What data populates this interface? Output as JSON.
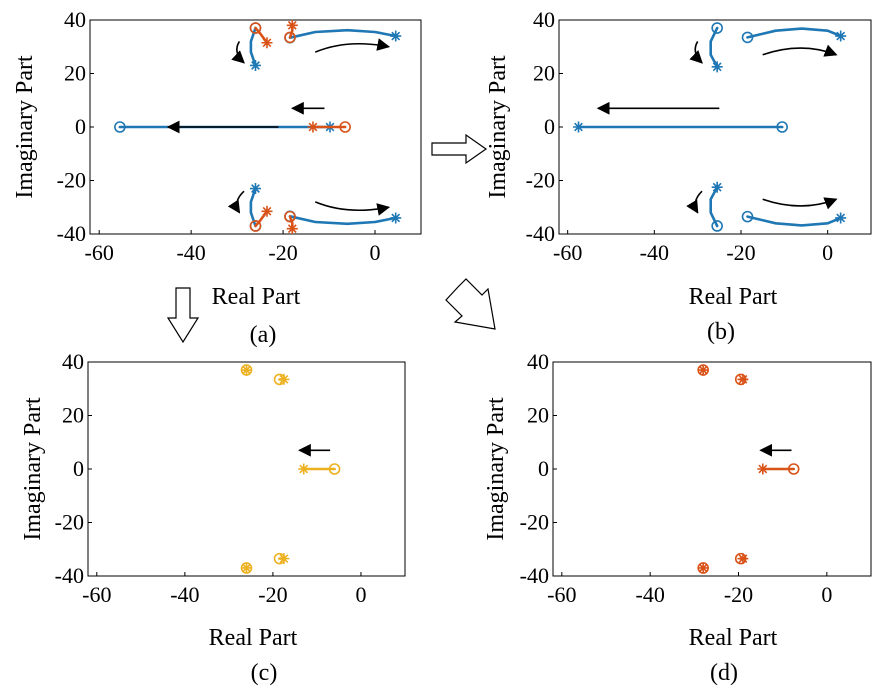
{
  "colors": {
    "blue": "#1f77b4",
    "orange": "#d95319",
    "yellow": "#edb120",
    "axis": "#000000",
    "arrow": "#000000"
  },
  "chart_data": [
    {
      "id": "a",
      "type": "line",
      "caption": "(a)",
      "xlabel": "Real Part",
      "ylabel": "Imaginary Part",
      "xlim": [
        -62,
        10
      ],
      "ylim": [
        -40,
        40
      ],
      "xticks": [
        -60,
        -40,
        -20,
        0
      ],
      "yticks": [
        -40,
        -20,
        0,
        20,
        40
      ],
      "series": [
        {
          "color": "blue",
          "points": [
            [
              -55.5,
              0
            ],
            [
              -9.8,
              0
            ]
          ],
          "start": "circle",
          "end": "star"
        },
        {
          "color": "blue",
          "points": [
            [
              -18.5,
              33.4
            ],
            [
              -13,
              35.5
            ],
            [
              -6,
              36.2
            ],
            [
              0,
              35.5
            ],
            [
              4.5,
              34
            ]
          ],
          "start": "circle",
          "end": "star"
        },
        {
          "color": "blue",
          "points": [
            [
              -18.5,
              -33.4
            ],
            [
              -13,
              -35.5
            ],
            [
              -6,
              -36.2
            ],
            [
              0,
              -35.5
            ],
            [
              4.5,
              -34
            ]
          ],
          "start": "circle",
          "end": "star"
        },
        {
          "color": "blue",
          "points": [
            [
              -26,
              37
            ],
            [
              -27,
              32
            ],
            [
              -27,
              28
            ],
            [
              -26,
              23
            ]
          ],
          "start": "circle",
          "end": "star"
        },
        {
          "color": "blue",
          "points": [
            [
              -26,
              -37
            ],
            [
              -27,
              -32
            ],
            [
              -27,
              -28
            ],
            [
              -26,
              -23
            ]
          ],
          "start": "circle",
          "end": "star"
        },
        {
          "color": "orange",
          "points": [
            [
              -6.5,
              0
            ],
            [
              -13.5,
              0
            ]
          ],
          "start": "circle",
          "end": "star"
        },
        {
          "color": "orange",
          "points": [
            [
              -26,
              37
            ],
            [
              -25,
              35
            ],
            [
              -23.5,
              31.5
            ]
          ],
          "start": "circle",
          "end": "star"
        },
        {
          "color": "orange",
          "points": [
            [
              -26,
              -37
            ],
            [
              -25,
              -35
            ],
            [
              -23.5,
              -31.5
            ]
          ],
          "start": "circle",
          "end": "star"
        },
        {
          "color": "orange",
          "points": [
            [
              -18.5,
              33.5
            ],
            [
              -18,
              36
            ],
            [
              -18,
              38
            ]
          ],
          "start": "circle",
          "end": "star"
        },
        {
          "color": "orange",
          "points": [
            [
              -18.5,
              -33.5
            ],
            [
              -18,
              -36
            ],
            [
              -18,
              -38
            ]
          ],
          "start": "circle",
          "end": "star"
        }
      ],
      "arrows": [
        {
          "points": [
            [
              -21,
              0
            ],
            [
              -45,
              0
            ]
          ]
        },
        {
          "points": [
            [
              -11,
              7
            ],
            [
              -18,
              7
            ]
          ]
        },
        {
          "points": [
            [
              -13,
              28
            ],
            [
              -6,
              33
            ],
            [
              3,
              30
            ]
          ]
        },
        {
          "points": [
            [
              -13,
              -28
            ],
            [
              -6,
              -33
            ],
            [
              3,
              -30
            ]
          ]
        },
        {
          "points": [
            [
              -29.5,
              32
            ],
            [
              -31,
              28
            ],
            [
              -28.5,
              24
            ]
          ]
        },
        {
          "points": [
            [
              -28.5,
              -24
            ],
            [
              -31,
              -28
            ],
            [
              -29.5,
              -32
            ]
          ]
        }
      ]
    },
    {
      "id": "b",
      "type": "line",
      "caption": "(b)",
      "xlabel": "Real Part",
      "ylabel": "Imaginary Part",
      "xlim": [
        -62,
        10
      ],
      "ylim": [
        -40,
        40
      ],
      "xticks": [
        -60,
        -40,
        -20,
        0
      ],
      "yticks": [
        -40,
        -20,
        0,
        20,
        40
      ],
      "series": [
        {
          "color": "blue",
          "points": [
            [
              -10.5,
              0
            ],
            [
              -57.5,
              0
            ]
          ],
          "start": "circle",
          "end": "star"
        },
        {
          "color": "blue",
          "points": [
            [
              -18.5,
              33.5
            ],
            [
              -12,
              36
            ],
            [
              -6,
              36.8
            ],
            [
              0,
              36
            ],
            [
              3,
              34
            ]
          ],
          "start": "circle",
          "end": "star"
        },
        {
          "color": "blue",
          "points": [
            [
              -18.5,
              -33.5
            ],
            [
              -12,
              -36
            ],
            [
              -6,
              -36.8
            ],
            [
              0,
              -36
            ],
            [
              3,
              -34
            ]
          ],
          "start": "circle",
          "end": "star"
        },
        {
          "color": "blue",
          "points": [
            [
              -25.5,
              37
            ],
            [
              -27,
              32
            ],
            [
              -27,
              27
            ],
            [
              -25.5,
              22.5
            ]
          ],
          "start": "circle",
          "end": "star"
        },
        {
          "color": "blue",
          "points": [
            [
              -25.5,
              -37
            ],
            [
              -27,
              -32
            ],
            [
              -27,
              -27
            ],
            [
              -25.5,
              -22.5
            ]
          ],
          "start": "circle",
          "end": "star"
        }
      ],
      "arrows": [
        {
          "points": [
            [
              -25,
              7
            ],
            [
              -53,
              7
            ]
          ]
        },
        {
          "points": [
            [
              -15,
              27
            ],
            [
              -6,
              32
            ],
            [
              2,
              27
            ]
          ]
        },
        {
          "points": [
            [
              -15,
              -27
            ],
            [
              -6,
              -32
            ],
            [
              2,
              -27
            ]
          ]
        },
        {
          "points": [
            [
              -30,
              32
            ],
            [
              -31.5,
              28
            ],
            [
              -29,
              24
            ]
          ]
        },
        {
          "points": [
            [
              -29,
              -24
            ],
            [
              -31.5,
              -28
            ],
            [
              -30,
              -32
            ]
          ]
        }
      ]
    },
    {
      "id": "c",
      "type": "line",
      "caption": "(c)",
      "xlabel": "Real Part",
      "ylabel": "Imaginary Part",
      "xlim": [
        -62,
        10
      ],
      "ylim": [
        -40,
        40
      ],
      "xticks": [
        -60,
        -40,
        -20,
        0
      ],
      "yticks": [
        -40,
        -20,
        0,
        20,
        40
      ],
      "series": [
        {
          "color": "yellow",
          "points": [
            [
              -6,
              0
            ],
            [
              -13,
              0
            ]
          ],
          "start": "circle",
          "end": "star"
        },
        {
          "color": "yellow",
          "points": [
            [
              -26,
              37
            ],
            [
              -26,
              37
            ]
          ],
          "start": "circle",
          "end": "star"
        },
        {
          "color": "yellow",
          "points": [
            [
              -26,
              -37
            ],
            [
              -26,
              -37
            ]
          ],
          "start": "circle",
          "end": "star"
        },
        {
          "color": "yellow",
          "points": [
            [
              -18.5,
              33.5
            ],
            [
              -17.5,
              33.5
            ]
          ],
          "start": "circle",
          "end": "star"
        },
        {
          "color": "yellow",
          "points": [
            [
              -18.5,
              -33.5
            ],
            [
              -17.5,
              -33.5
            ]
          ],
          "start": "circle",
          "end": "star"
        }
      ],
      "arrows": [
        {
          "points": [
            [
              -7,
              7
            ],
            [
              -14,
              7
            ]
          ]
        }
      ]
    },
    {
      "id": "d",
      "type": "line",
      "caption": "(d)",
      "xlabel": "Real Part",
      "ylabel": "Imaginary Part",
      "xlim": [
        -62,
        10
      ],
      "ylim": [
        -40,
        40
      ],
      "xticks": [
        -60,
        -40,
        -20,
        0
      ],
      "yticks": [
        -40,
        -20,
        0,
        20,
        40
      ],
      "series": [
        {
          "color": "orange",
          "points": [
            [
              -7.5,
              0
            ],
            [
              -14.5,
              0
            ]
          ],
          "start": "circle",
          "end": "star"
        },
        {
          "color": "orange",
          "points": [
            [
              -28,
              37
            ],
            [
              -28,
              37
            ]
          ],
          "start": "circle",
          "end": "star"
        },
        {
          "color": "orange",
          "points": [
            [
              -28,
              -37
            ],
            [
              -28,
              -37
            ]
          ],
          "start": "circle",
          "end": "star"
        },
        {
          "color": "orange",
          "points": [
            [
              -19.5,
              33.5
            ],
            [
              -19,
              33.5
            ]
          ],
          "start": "circle",
          "end": "star"
        },
        {
          "color": "orange",
          "points": [
            [
              -19.5,
              -33.5
            ],
            [
              -19,
              -33.5
            ]
          ],
          "start": "circle",
          "end": "star"
        }
      ],
      "arrows": [
        {
          "points": [
            [
              -8,
              7
            ],
            [
              -15,
              7
            ]
          ]
        }
      ]
    }
  ]
}
